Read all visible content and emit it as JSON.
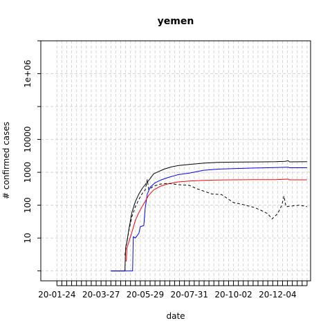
{
  "chart_data": {
    "type": "line",
    "title": "yemen",
    "xlabel": "date",
    "ylabel": "# confirmed cases",
    "y_scale": "log10",
    "xlim": [
      "2020-01-01",
      "2021-01-20"
    ],
    "ylim": [
      0.5,
      10000000
    ],
    "x_tick_labels": [
      {
        "date": "2020-01-24",
        "label": "20-01-24"
      },
      {
        "date": "2020-03-27",
        "label": "20-03-27"
      },
      {
        "date": "2020-05-29",
        "label": "20-05-29"
      },
      {
        "date": "2020-07-31",
        "label": "20-07-31"
      },
      {
        "date": "2020-10-02",
        "label": "20-10-02"
      },
      {
        "date": "2020-12-04",
        "label": "20-12-04"
      }
    ],
    "y_tick_labels": [
      {
        "value": 10,
        "label": "10"
      },
      {
        "value": 100,
        "label": "100"
      },
      {
        "value": 1000,
        "label": "1000"
      },
      {
        "value": 10000,
        "label": "10000"
      },
      {
        "value": 1000000,
        "label": "1e+06"
      }
    ],
    "grid": true,
    "legend": "none",
    "series": [
      {
        "color": "#000000",
        "dash": "solid",
        "points": [
          [
            "2020-04-10",
            1
          ],
          [
            "2020-04-30",
            1
          ],
          [
            "2020-05-01",
            5
          ],
          [
            "2020-05-03",
            8
          ],
          [
            "2020-05-06",
            20
          ],
          [
            "2020-05-10",
            60
          ],
          [
            "2020-05-15",
            130
          ],
          [
            "2020-05-20",
            220
          ],
          [
            "2020-05-25",
            330
          ],
          [
            "2020-05-29",
            420
          ],
          [
            "2020-06-04",
            600
          ],
          [
            "2020-06-10",
            900
          ],
          [
            "2020-06-17",
            1050
          ],
          [
            "2020-06-25",
            1250
          ],
          [
            "2020-07-05",
            1450
          ],
          [
            "2020-07-15",
            1600
          ],
          [
            "2020-07-31",
            1730
          ],
          [
            "2020-08-20",
            1900
          ],
          [
            "2020-09-10",
            2000
          ],
          [
            "2020-10-02",
            2040
          ],
          [
            "2020-11-01",
            2070
          ],
          [
            "2020-12-01",
            2100
          ],
          [
            "2020-12-15",
            2150
          ],
          [
            "2020-12-19",
            2250
          ],
          [
            "2020-12-21",
            2080
          ],
          [
            "2021-01-15",
            2100
          ]
        ]
      },
      {
        "color": "#0000ff",
        "dash": "solid",
        "points": [
          [
            "2020-04-10",
            1
          ],
          [
            "2020-05-11",
            1
          ],
          [
            "2020-05-12",
            11
          ],
          [
            "2020-05-15",
            10
          ],
          [
            "2020-05-20",
            14
          ],
          [
            "2020-05-22",
            22
          ],
          [
            "2020-05-27",
            24
          ],
          [
            "2020-05-29",
            80
          ],
          [
            "2020-06-01",
            220
          ],
          [
            "2020-06-05",
            350
          ],
          [
            "2020-06-12",
            480
          ],
          [
            "2020-06-20",
            580
          ],
          [
            "2020-07-01",
            700
          ],
          [
            "2020-07-15",
            850
          ],
          [
            "2020-07-31",
            950
          ],
          [
            "2020-08-20",
            1150
          ],
          [
            "2020-09-10",
            1250
          ],
          [
            "2020-10-02",
            1300
          ],
          [
            "2020-11-01",
            1350
          ],
          [
            "2020-12-01",
            1400
          ],
          [
            "2020-12-19",
            1430
          ],
          [
            "2020-12-21",
            1380
          ],
          [
            "2021-01-15",
            1380
          ]
        ]
      },
      {
        "color": "#ff0000",
        "dash": "solid",
        "points": [
          [
            "2020-05-01",
            2
          ],
          [
            "2020-05-02",
            2
          ],
          [
            "2020-05-03",
            5
          ],
          [
            "2020-05-06",
            8
          ],
          [
            "2020-05-10",
            15
          ],
          [
            "2020-05-15",
            35
          ],
          [
            "2020-05-20",
            60
          ],
          [
            "2020-05-25",
            95
          ],
          [
            "2020-05-29",
            130
          ],
          [
            "2020-06-03",
            200
          ],
          [
            "2020-06-10",
            290
          ],
          [
            "2020-06-20",
            380
          ],
          [
            "2020-07-01",
            450
          ],
          [
            "2020-07-15",
            510
          ],
          [
            "2020-07-31",
            540
          ],
          [
            "2020-08-20",
            570
          ],
          [
            "2020-09-10",
            585
          ],
          [
            "2020-10-02",
            590
          ],
          [
            "2020-11-01",
            595
          ],
          [
            "2020-12-01",
            600
          ],
          [
            "2020-12-19",
            620
          ],
          [
            "2020-12-21",
            590
          ],
          [
            "2021-01-15",
            590
          ]
        ]
      },
      {
        "color": "#000000",
        "dash": "dashed",
        "points": [
          [
            "2020-04-30",
            3
          ],
          [
            "2020-05-02",
            6
          ],
          [
            "2020-05-06",
            18
          ],
          [
            "2020-05-10",
            45
          ],
          [
            "2020-05-15",
            90
          ],
          [
            "2020-05-20",
            150
          ],
          [
            "2020-05-25",
            230
          ],
          [
            "2020-05-29",
            290
          ],
          [
            "2020-06-01",
            600
          ],
          [
            "2020-06-03",
            300
          ],
          [
            "2020-06-10",
            380
          ],
          [
            "2020-06-20",
            440
          ],
          [
            "2020-07-01",
            460
          ],
          [
            "2020-07-15",
            420
          ],
          [
            "2020-07-31",
            400
          ],
          [
            "2020-08-10",
            320
          ],
          [
            "2020-08-20",
            270
          ],
          [
            "2020-09-01",
            220
          ],
          [
            "2020-09-15",
            210
          ],
          [
            "2020-10-02",
            120
          ],
          [
            "2020-10-15",
            105
          ],
          [
            "2020-11-01",
            85
          ],
          [
            "2020-11-10",
            70
          ],
          [
            "2020-11-20",
            55
          ],
          [
            "2020-11-26",
            38
          ],
          [
            "2020-12-04",
            55
          ],
          [
            "2020-12-10",
            100
          ],
          [
            "2020-12-13",
            190
          ],
          [
            "2020-12-16",
            90
          ],
          [
            "2020-12-25",
            95
          ],
          [
            "2021-01-05",
            100
          ],
          [
            "2021-01-15",
            90
          ]
        ]
      }
    ]
  }
}
